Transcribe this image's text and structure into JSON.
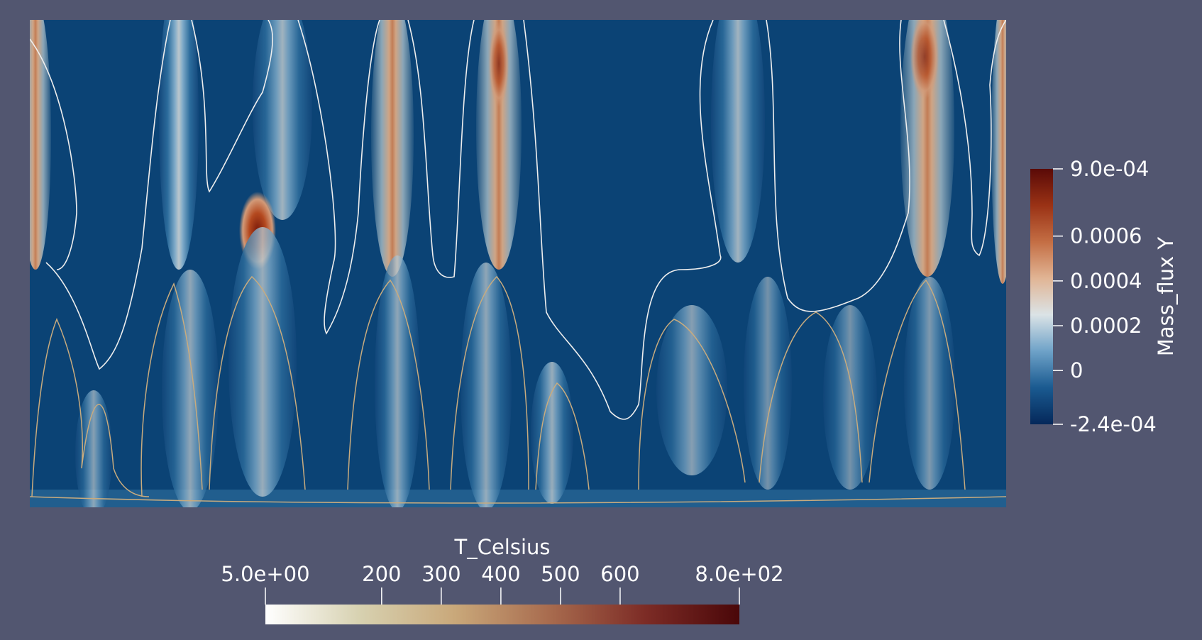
{
  "chart_data": {
    "type": "heatmap",
    "field": {
      "name": "Mass_flux Y",
      "range": [
        -0.00024,
        0.0009
      ],
      "tick_values": [
        0.0009,
        0.0006,
        0.0004,
        0.0002,
        0,
        -0.00024
      ],
      "tick_labels": [
        "9.0e-04",
        "0.0006",
        "0.0004",
        "0.0002",
        "0",
        "-2.4e-04"
      ],
      "colormap": [
        "#05285a",
        "#1a5a90",
        "#6ea2c8",
        "#dbe3e6",
        "#e1b595",
        "#c46e44",
        "#9a3215",
        "#5a0a07"
      ]
    },
    "contours": {
      "name": "T_Celsius",
      "range": [
        5,
        800
      ],
      "tick_values": [
        5,
        200,
        300,
        400,
        500,
        600,
        800
      ],
      "tick_labels": [
        "5.0e+00",
        "200",
        "300",
        "400",
        "500",
        "600",
        "8.0e+02"
      ],
      "colormap": [
        "#ffffff",
        "#d7d1b0",
        "#c9a87a",
        "#a86b4e",
        "#7d2c26",
        "#4a0709"
      ]
    }
  }
}
